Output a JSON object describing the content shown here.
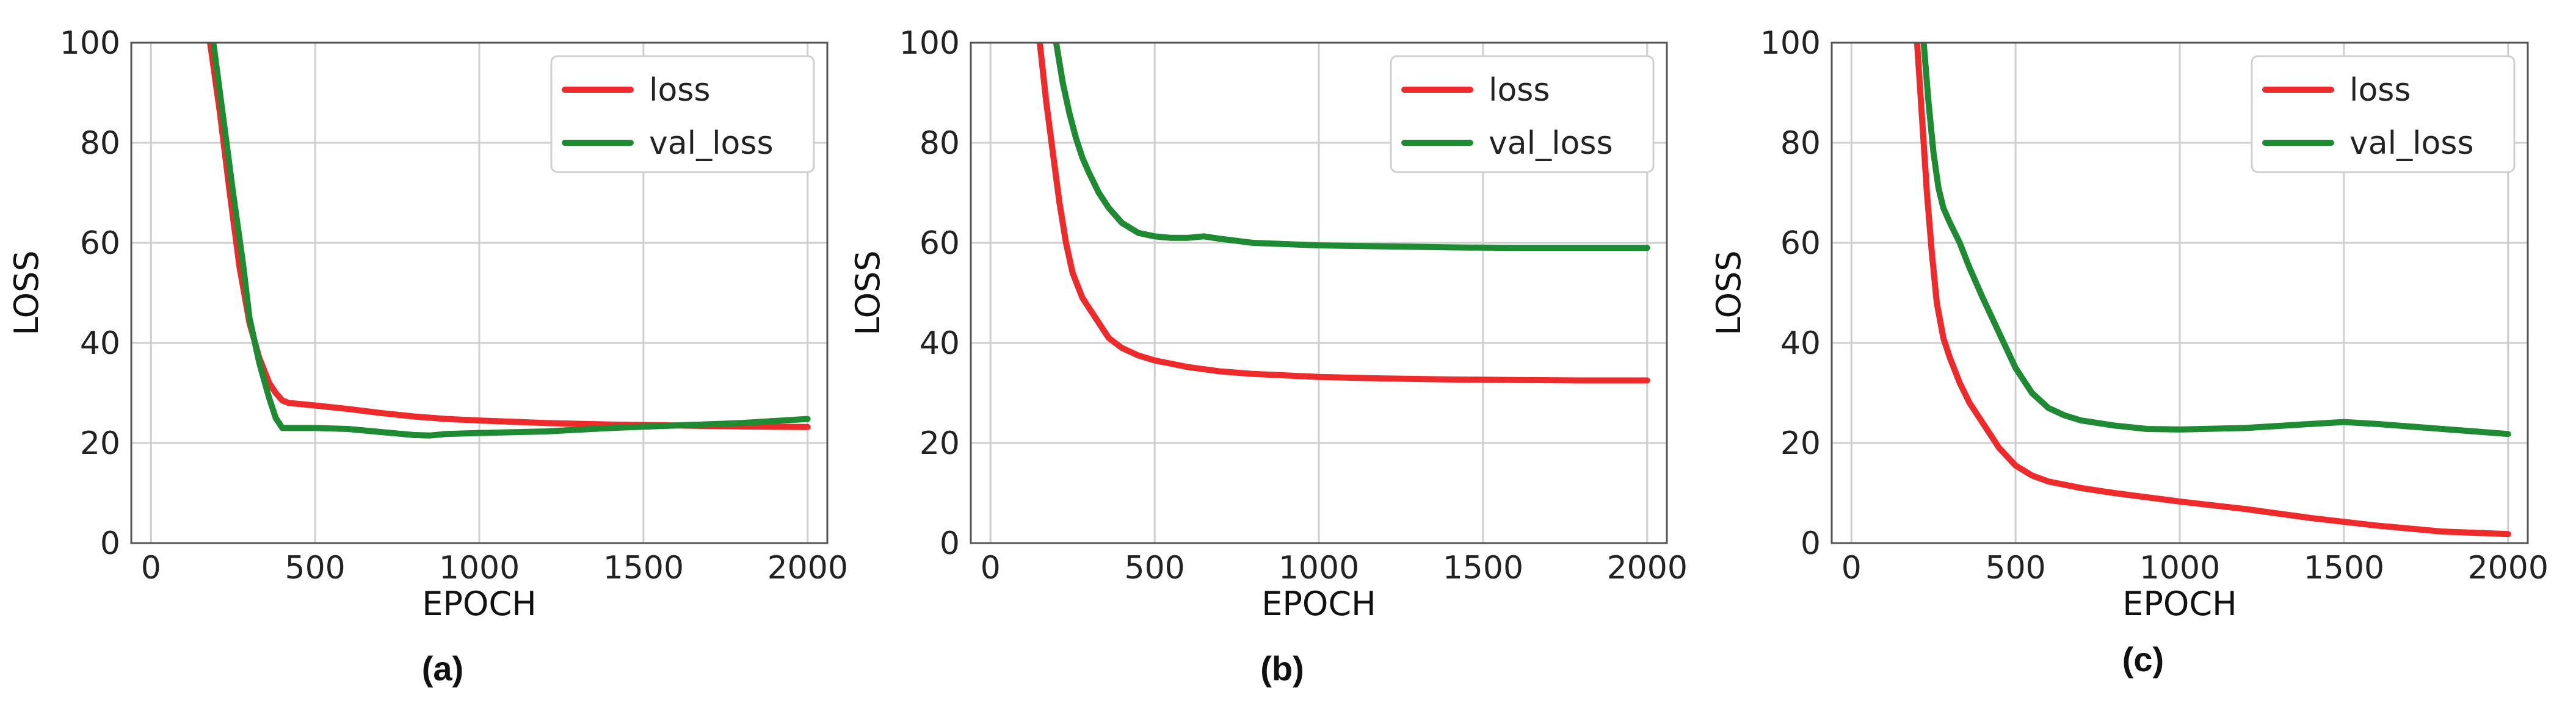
{
  "colors": {
    "loss": "#ee2a2a",
    "val_loss": "#1e8a32"
  },
  "chart_data": [
    {
      "type": "line",
      "caption": "(a)",
      "xlabel": "EPOCH",
      "ylabel": "LOSS",
      "xlim": [
        -60,
        2060
      ],
      "ylim": [
        0,
        100
      ],
      "xticks": [
        0,
        500,
        1000,
        1500,
        2000
      ],
      "yticks": [
        0,
        20,
        40,
        60,
        80,
        100
      ],
      "grid": true,
      "legend_position": "top-right",
      "series": [
        {
          "name": "loss",
          "color_key": "loss",
          "x": [
            180,
            210,
            240,
            270,
            300,
            330,
            360,
            380,
            400,
            420,
            500,
            600,
            700,
            800,
            900,
            1000,
            1200,
            1400,
            1600,
            1800,
            2000
          ],
          "y": [
            100,
            86,
            70,
            55,
            44,
            37,
            32,
            30,
            28.5,
            28,
            27.5,
            26.8,
            26.0,
            25.3,
            24.8,
            24.5,
            24.0,
            23.7,
            23.5,
            23.3,
            23.2
          ]
        },
        {
          "name": "val_loss",
          "color_key": "val_loss",
          "x": [
            190,
            220,
            250,
            280,
            300,
            330,
            360,
            380,
            400,
            430,
            500,
            600,
            700,
            800,
            850,
            900,
            1000,
            1200,
            1400,
            1600,
            1800,
            2000
          ],
          "y": [
            100,
            85,
            70,
            56,
            45,
            36,
            29,
            25,
            23,
            23,
            23,
            22.8,
            22.2,
            21.6,
            21.5,
            21.8,
            22.0,
            22.3,
            23.0,
            23.5,
            24.0,
            24.8
          ]
        }
      ]
    },
    {
      "type": "line",
      "caption": "(b)",
      "xlabel": "EPOCH",
      "ylabel": "LOSS",
      "xlim": [
        -60,
        2060
      ],
      "ylim": [
        0,
        100
      ],
      "xticks": [
        0,
        500,
        1000,
        1500,
        2000
      ],
      "yticks": [
        0,
        20,
        40,
        60,
        80,
        100
      ],
      "grid": true,
      "legend_position": "top-right",
      "series": [
        {
          "name": "loss",
          "color_key": "loss",
          "x": [
            150,
            170,
            190,
            210,
            230,
            250,
            280,
            320,
            360,
            400,
            450,
            500,
            600,
            700,
            800,
            1000,
            1200,
            1400,
            1600,
            1800,
            2000
          ],
          "y": [
            100,
            88,
            78,
            68,
            60,
            54,
            49,
            45,
            41,
            39,
            37.5,
            36.5,
            35.2,
            34.3,
            33.8,
            33.2,
            32.9,
            32.7,
            32.6,
            32.5,
            32.5
          ]
        },
        {
          "name": "val_loss",
          "color_key": "val_loss",
          "x": [
            200,
            220,
            240,
            260,
            280,
            300,
            330,
            360,
            400,
            450,
            500,
            550,
            600,
            650,
            700,
            800,
            1000,
            1200,
            1400,
            1600,
            1800,
            2000
          ],
          "y": [
            100,
            92,
            86,
            81,
            77,
            74,
            70,
            67,
            64,
            62,
            61.3,
            61,
            61,
            61.3,
            60.8,
            60,
            59.5,
            59.3,
            59.1,
            59.0,
            59.0,
            59.0
          ]
        }
      ]
    },
    {
      "type": "line",
      "caption": "(c)",
      "xlabel": "EPOCH",
      "ylabel": "LOSS",
      "xlim": [
        -60,
        2060
      ],
      "ylim": [
        0,
        100
      ],
      "xticks": [
        0,
        500,
        1000,
        1500,
        2000
      ],
      "yticks": [
        0,
        20,
        40,
        60,
        80,
        100
      ],
      "grid": true,
      "legend_position": "top-right",
      "series": [
        {
          "name": "loss",
          "color_key": "loss",
          "x": [
            200,
            215,
            230,
            245,
            260,
            280,
            300,
            330,
            360,
            400,
            450,
            500,
            550,
            600,
            700,
            800,
            1000,
            1200,
            1400,
            1600,
            1800,
            2000
          ],
          "y": [
            100,
            85,
            70,
            58,
            48,
            41,
            37,
            32,
            28,
            24,
            19,
            15.5,
            13.5,
            12.3,
            11,
            10,
            8.3,
            6.8,
            5.0,
            3.5,
            2.3,
            1.8
          ]
        },
        {
          "name": "val_loss",
          "color_key": "val_loss",
          "x": [
            220,
            235,
            250,
            265,
            280,
            300,
            330,
            360,
            400,
            450,
            500,
            550,
            600,
            650,
            700,
            800,
            900,
            1000,
            1200,
            1400,
            1500,
            1600,
            1800,
            2000
          ],
          "y": [
            100,
            88,
            78,
            71,
            67,
            64,
            60,
            55,
            49,
            42,
            35,
            30,
            27,
            25.5,
            24.5,
            23.5,
            22.8,
            22.7,
            23.0,
            23.8,
            24.2,
            23.8,
            22.8,
            21.8
          ]
        }
      ]
    }
  ]
}
